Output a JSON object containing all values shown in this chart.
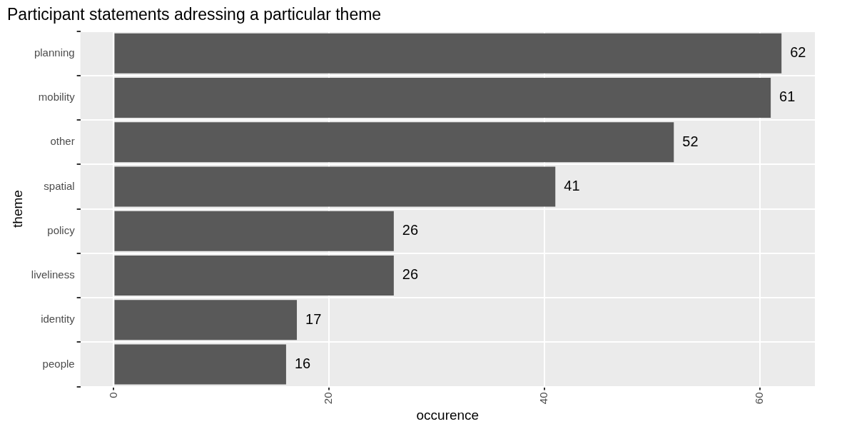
{
  "chart_data": {
    "type": "bar",
    "orientation": "horizontal",
    "title": "Participant statements adressing a particular theme",
    "xlabel": "occurence",
    "ylabel": "theme",
    "categories": [
      "planning",
      "mobility",
      "other",
      "spatial",
      "policy",
      "liveliness",
      "identity",
      "people"
    ],
    "values": [
      62,
      61,
      52,
      41,
      26,
      26,
      17,
      16
    ],
    "color": "#595959",
    "xlim": [
      -3.1,
      65.1
    ],
    "xticks": [
      0,
      20,
      40,
      60
    ],
    "grid": true,
    "data_labels": true
  }
}
